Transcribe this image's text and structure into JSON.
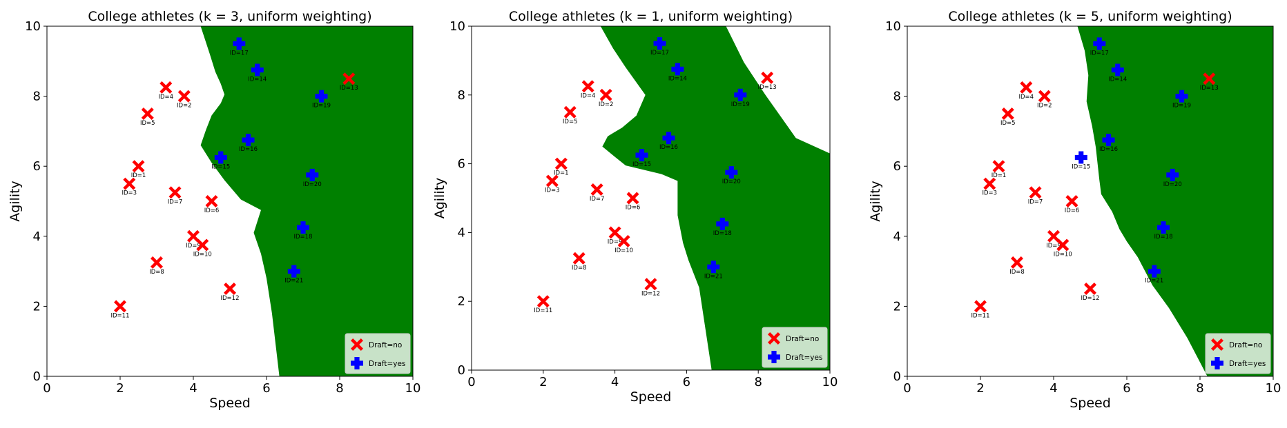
{
  "chart_data": [
    {
      "type": "scatter",
      "title": "College athletes (k = 3, uniform weighting)",
      "xlabel": "Speed",
      "ylabel": "Agility",
      "xlim": [
        0,
        10
      ],
      "ylim": [
        0,
        10
      ],
      "xticks": [
        "0",
        "2",
        "4",
        "6",
        "8",
        "10"
      ],
      "yticks": [
        "0",
        "2",
        "4",
        "6",
        "8",
        "10"
      ],
      "grid": false,
      "legend": {
        "position": "bottom-right",
        "entries": [
          "Draft=no",
          "Draft=yes"
        ]
      },
      "region": {
        "label": "Draft=yes",
        "color": "#008000",
        "boundary": [
          [
            4.2,
            10
          ],
          [
            4.45,
            9.2
          ],
          [
            4.6,
            8.7
          ],
          [
            4.75,
            8.35
          ],
          [
            4.85,
            8.05
          ],
          [
            4.75,
            7.8
          ],
          [
            4.5,
            7.45
          ],
          [
            4.35,
            7.05
          ],
          [
            4.2,
            6.6
          ],
          [
            4.5,
            6.1
          ],
          [
            4.85,
            5.6
          ],
          [
            5.3,
            5.05
          ],
          [
            5.85,
            4.75
          ],
          [
            5.65,
            4.1
          ],
          [
            5.85,
            3.5
          ],
          [
            6.0,
            2.8
          ],
          [
            6.15,
            1.8
          ],
          [
            6.35,
            0
          ]
        ]
      },
      "series": [
        {
          "name": "Draft=no",
          "color": "#ff0000",
          "marker": "X",
          "points": [
            {
              "id": "ID=1",
              "x": 2.5,
              "y": 6.0
            },
            {
              "id": "ID=2",
              "x": 3.75,
              "y": 8.0
            },
            {
              "id": "ID=3",
              "x": 2.25,
              "y": 5.5
            },
            {
              "id": "ID=4",
              "x": 3.25,
              "y": 8.25
            },
            {
              "id": "ID=5",
              "x": 2.75,
              "y": 7.5
            },
            {
              "id": "ID=6",
              "x": 4.5,
              "y": 5.0
            },
            {
              "id": "ID=7",
              "x": 3.5,
              "y": 5.25
            },
            {
              "id": "ID=8",
              "x": 3.0,
              "y": 3.25
            },
            {
              "id": "ID=9",
              "x": 4.0,
              "y": 4.0
            },
            {
              "id": "ID=10",
              "x": 4.25,
              "y": 3.75
            },
            {
              "id": "ID=11",
              "x": 2.0,
              "y": 2.0
            },
            {
              "id": "ID=12",
              "x": 5.0,
              "y": 2.5
            },
            {
              "id": "ID=13",
              "x": 8.25,
              "y": 8.5
            }
          ]
        },
        {
          "name": "Draft=yes",
          "color": "#0000ff",
          "marker": "P",
          "points": [
            {
              "id": "ID=14",
              "x": 5.75,
              "y": 8.75
            },
            {
              "id": "ID=15",
              "x": 4.75,
              "y": 6.25
            },
            {
              "id": "ID=16",
              "x": 5.5,
              "y": 6.75
            },
            {
              "id": "ID=17",
              "x": 5.25,
              "y": 9.5
            },
            {
              "id": "ID=18",
              "x": 7.0,
              "y": 4.25
            },
            {
              "id": "ID=19",
              "x": 7.5,
              "y": 8.0
            },
            {
              "id": "ID=20",
              "x": 7.25,
              "y": 5.75
            },
            {
              "id": "ID=21",
              "x": 6.75,
              "y": 3.0
            }
          ]
        }
      ]
    },
    {
      "type": "scatter",
      "title": "College athletes (k = 1, uniform weighting)",
      "xlabel": "Speed",
      "ylabel": "Agility",
      "xlim": [
        0,
        10
      ],
      "ylim": [
        0,
        10
      ],
      "xticks": [
        "0",
        "2",
        "4",
        "6",
        "8",
        "10"
      ],
      "yticks": [
        "0",
        "2",
        "4",
        "6",
        "8",
        "10"
      ],
      "grid": false,
      "legend": {
        "position": "bottom-right",
        "entries": [
          "Draft=no",
          "Draft=yes"
        ]
      },
      "region": {
        "label": "Draft=yes",
        "color": "#008000",
        "boundary": [
          [
            3.6,
            10
          ],
          [
            3.95,
            9.35
          ],
          [
            4.3,
            8.8
          ],
          [
            4.85,
            8.0
          ],
          [
            4.6,
            7.4
          ],
          [
            4.2,
            7.05
          ],
          [
            3.8,
            6.8
          ],
          [
            3.65,
            6.5
          ],
          [
            4.0,
            6.2
          ],
          [
            4.3,
            5.95
          ],
          [
            5.3,
            5.7
          ],
          [
            5.75,
            5.5
          ],
          [
            5.75,
            4.5
          ],
          [
            5.9,
            3.7
          ],
          [
            6.05,
            3.2
          ],
          [
            6.35,
            2.4
          ],
          [
            6.7,
            0
          ]
        ],
        "boundary_right": [
          [
            10,
            6.3
          ],
          [
            9.05,
            6.75
          ],
          [
            8.2,
            8.0
          ],
          [
            7.6,
            8.95
          ],
          [
            7.1,
            10
          ]
        ]
      },
      "series": [
        {
          "name": "Draft=no",
          "color": "#ff0000",
          "marker": "X",
          "points": [
            {
              "id": "ID=1",
              "x": 2.5,
              "y": 6.0
            },
            {
              "id": "ID=2",
              "x": 3.75,
              "y": 8.0
            },
            {
              "id": "ID=3",
              "x": 2.25,
              "y": 5.5
            },
            {
              "id": "ID=4",
              "x": 3.25,
              "y": 8.25
            },
            {
              "id": "ID=5",
              "x": 2.75,
              "y": 7.5
            },
            {
              "id": "ID=6",
              "x": 4.5,
              "y": 5.0
            },
            {
              "id": "ID=7",
              "x": 3.5,
              "y": 5.25
            },
            {
              "id": "ID=8",
              "x": 3.0,
              "y": 3.25
            },
            {
              "id": "ID=9",
              "x": 4.0,
              "y": 4.0
            },
            {
              "id": "ID=10",
              "x": 4.25,
              "y": 3.75
            },
            {
              "id": "ID=11",
              "x": 2.0,
              "y": 2.0
            },
            {
              "id": "ID=12",
              "x": 5.0,
              "y": 2.5
            },
            {
              "id": "ID=13",
              "x": 8.25,
              "y": 8.5
            }
          ]
        },
        {
          "name": "Draft=yes",
          "color": "#0000ff",
          "marker": "P",
          "points": [
            {
              "id": "ID=14",
              "x": 5.75,
              "y": 8.75
            },
            {
              "id": "ID=15",
              "x": 4.75,
              "y": 6.25
            },
            {
              "id": "ID=16",
              "x": 5.5,
              "y": 6.75
            },
            {
              "id": "ID=17",
              "x": 5.25,
              "y": 9.5
            },
            {
              "id": "ID=18",
              "x": 7.0,
              "y": 4.25
            },
            {
              "id": "ID=19",
              "x": 7.5,
              "y": 8.0
            },
            {
              "id": "ID=20",
              "x": 7.25,
              "y": 5.75
            },
            {
              "id": "ID=21",
              "x": 6.75,
              "y": 3.0
            }
          ]
        }
      ]
    },
    {
      "type": "scatter",
      "title": "College athletes (k = 5, uniform weighting)",
      "xlabel": "Speed",
      "ylabel": "Agility",
      "xlim": [
        0,
        10
      ],
      "ylim": [
        0,
        10
      ],
      "xticks": [
        "0",
        "2",
        "4",
        "6",
        "8",
        "10"
      ],
      "yticks": [
        "0",
        "2",
        "4",
        "6",
        "8",
        "10"
      ],
      "grid": false,
      "legend": {
        "position": "bottom-right",
        "entries": [
          "Draft=no",
          "Draft=yes"
        ]
      },
      "region": {
        "label": "Draft=yes",
        "color": "#008000",
        "boundary": [
          [
            4.65,
            10
          ],
          [
            4.85,
            9.3
          ],
          [
            4.95,
            8.6
          ],
          [
            4.9,
            7.85
          ],
          [
            5.05,
            7.15
          ],
          [
            5.15,
            6.55
          ],
          [
            5.25,
            5.6
          ],
          [
            5.3,
            5.2
          ],
          [
            5.6,
            4.7
          ],
          [
            5.8,
            4.2
          ],
          [
            6.0,
            3.85
          ],
          [
            6.3,
            3.4
          ],
          [
            6.7,
            2.6
          ],
          [
            7.15,
            1.95
          ],
          [
            7.65,
            1.1
          ],
          [
            8.2,
            0
          ]
        ]
      },
      "series": [
        {
          "name": "Draft=no",
          "color": "#ff0000",
          "marker": "X",
          "points": [
            {
              "id": "ID=1",
              "x": 2.5,
              "y": 6.0
            },
            {
              "id": "ID=2",
              "x": 3.75,
              "y": 8.0
            },
            {
              "id": "ID=3",
              "x": 2.25,
              "y": 5.5
            },
            {
              "id": "ID=4",
              "x": 3.25,
              "y": 8.25
            },
            {
              "id": "ID=5",
              "x": 2.75,
              "y": 7.5
            },
            {
              "id": "ID=6",
              "x": 4.5,
              "y": 5.0
            },
            {
              "id": "ID=7",
              "x": 3.5,
              "y": 5.25
            },
            {
              "id": "ID=8",
              "x": 3.0,
              "y": 3.25
            },
            {
              "id": "ID=9",
              "x": 4.0,
              "y": 4.0
            },
            {
              "id": "ID=10",
              "x": 4.25,
              "y": 3.75
            },
            {
              "id": "ID=11",
              "x": 2.0,
              "y": 2.0
            },
            {
              "id": "ID=12",
              "x": 5.0,
              "y": 2.5
            },
            {
              "id": "ID=13",
              "x": 8.25,
              "y": 8.5
            }
          ]
        },
        {
          "name": "Draft=yes",
          "color": "#0000ff",
          "marker": "P",
          "points": [
            {
              "id": "ID=14",
              "x": 5.75,
              "y": 8.75
            },
            {
              "id": "ID=15",
              "x": 4.75,
              "y": 6.25
            },
            {
              "id": "ID=16",
              "x": 5.5,
              "y": 6.75
            },
            {
              "id": "ID=17",
              "x": 5.25,
              "y": 9.5
            },
            {
              "id": "ID=18",
              "x": 7.0,
              "y": 4.25
            },
            {
              "id": "ID=19",
              "x": 7.5,
              "y": 8.0
            },
            {
              "id": "ID=20",
              "x": 7.25,
              "y": 5.75
            },
            {
              "id": "ID=21",
              "x": 6.75,
              "y": 3.0
            }
          ]
        }
      ]
    }
  ]
}
